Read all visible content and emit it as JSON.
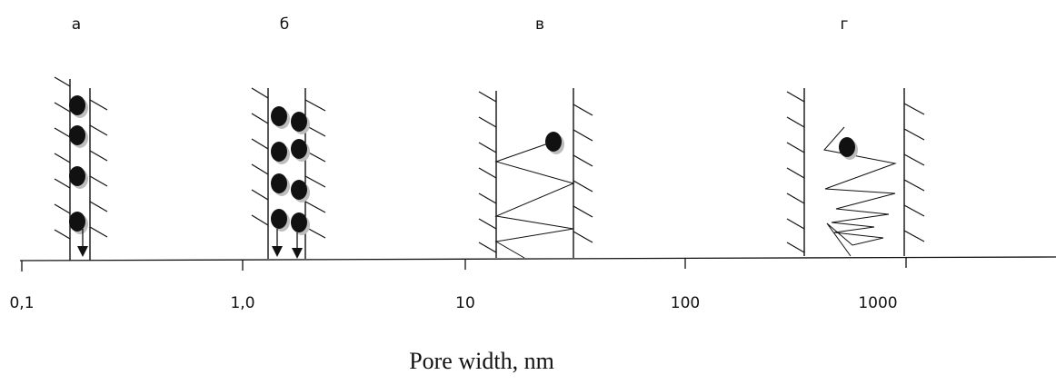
{
  "panels": [
    {
      "label": "а"
    },
    {
      "label": "б"
    },
    {
      "label": "в"
    },
    {
      "label": "г"
    }
  ],
  "axis": {
    "ticks": [
      "0,1",
      "1,0",
      "10",
      "100",
      "1000"
    ],
    "title": "Pore width, nm"
  },
  "colors": {
    "ink": "#111111",
    "shadow": "#bdbdbd",
    "background": "#ffffff"
  }
}
